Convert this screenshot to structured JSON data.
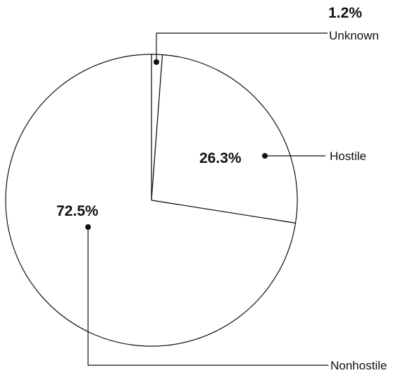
{
  "chart_data": {
    "type": "pie",
    "title": "",
    "legend": "none",
    "slices": [
      {
        "label": "Unknown",
        "value": 1.2,
        "value_label": "1.2%",
        "color": "#ffffff"
      },
      {
        "label": "Hostile",
        "value": 26.3,
        "value_label": "26.3%",
        "color": "#ffffff"
      },
      {
        "label": "Nonhostile",
        "value": 72.5,
        "value_label": "72.5%",
        "color": "#ffffff"
      }
    ],
    "outline_color": "#111111"
  }
}
